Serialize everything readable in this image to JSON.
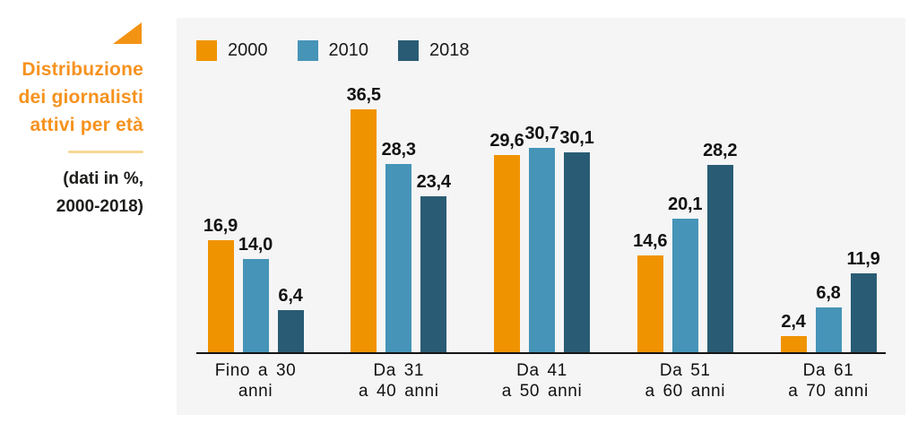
{
  "colors": {
    "accent_orange": "#F6921E",
    "divider_tan": "#F8D794",
    "subtitle_dark": "#1D1D1B",
    "panel_bg": "#F5F5F6",
    "axis": "#141414",
    "series_2000": "#F09300",
    "series_2010": "#4694B7",
    "series_2018": "#295C74"
  },
  "sidebar": {
    "title_lines": [
      "Distribuzione",
      "dei giornalisti",
      "attivi per età"
    ],
    "subtitle_lines": [
      "(dati in %,",
      "2000-2018)"
    ]
  },
  "chart_data": {
    "type": "bar",
    "title": "Distribuzione dei giornalisti attivi per età",
    "subtitle": "(dati in %, 2000-2018)",
    "value_unit": "%",
    "decimal_separator": ",",
    "categories": [
      "Fino a 30 anni",
      "Da 31 a 40 anni",
      "Da 41 a 50 anni",
      "Da 51 a 60 anni",
      "Da 61 a 70 anni"
    ],
    "categories_lines": [
      [
        "Fino a 30",
        "anni"
      ],
      [
        "Da 31",
        "a 40 anni"
      ],
      [
        "Da 41",
        "a 50 anni"
      ],
      [
        "Da 51",
        "a 60 anni"
      ],
      [
        "Da 61",
        "a 70 anni"
      ]
    ],
    "series": [
      {
        "name": "2000",
        "color": "#F09300",
        "values": [
          16.9,
          36.5,
          29.6,
          14.6,
          2.4
        ]
      },
      {
        "name": "2010",
        "color": "#4694B7",
        "values": [
          14.0,
          28.3,
          30.7,
          20.1,
          6.8
        ]
      },
      {
        "name": "2018",
        "color": "#295C74",
        "values": [
          6.4,
          23.4,
          30.1,
          28.2,
          11.9
        ]
      }
    ],
    "ylim": [
      0,
      40
    ],
    "grid": false,
    "legend_position": "top-left",
    "value_labels_shown": true
  }
}
